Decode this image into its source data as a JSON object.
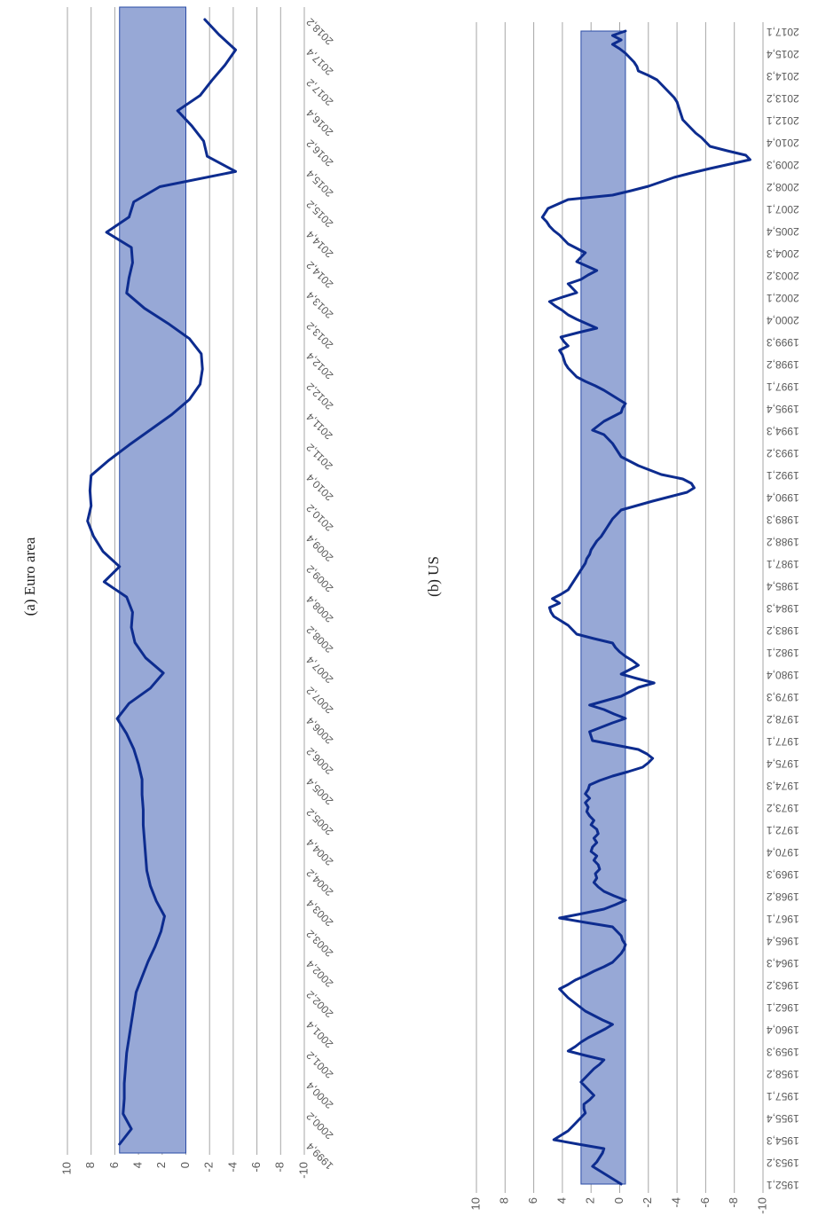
{
  "chart_data": [
    {
      "type": "line",
      "title": "(a) Euro area",
      "color": "#0d2c8f",
      "band": [
        0,
        5.6
      ],
      "band_color": "#97a8d6",
      "grid": true,
      "ylim": [
        -10,
        10
      ],
      "yticks": [
        -10,
        -8,
        -6,
        -4,
        -2,
        0,
        2,
        4,
        6,
        8,
        10
      ],
      "categories": [
        "1999,4",
        null,
        "2000,2",
        null,
        "2000,4",
        null,
        "2001,2",
        null,
        "2001,4",
        null,
        "2002,2",
        null,
        "2002,4",
        null,
        "2003,2",
        null,
        "2003,4",
        null,
        "2004,2",
        null,
        "2004,4",
        null,
        "2005,2",
        null,
        "2005,4",
        null,
        "2006,2",
        null,
        "2006,4",
        null,
        "2007,2",
        null,
        "2007,4",
        null,
        "2008,2",
        null,
        "2008,4",
        null,
        "2009,2",
        null,
        "2009,4",
        null,
        "2010,2",
        null,
        "2010,4",
        null,
        "2011,2",
        null,
        "2011,4",
        null,
        "2012,2",
        null,
        "2012,4",
        null,
        "2013,2",
        null,
        "2013,4",
        null,
        "2014,2",
        null,
        "2014,4",
        null,
        "2015,2",
        null,
        "2015,4",
        null,
        "2016,2",
        null,
        "2016,4",
        null,
        "2017,2",
        null,
        "2017,4",
        null,
        "2018,2"
      ],
      "values": [
        5.6,
        4.6,
        5.3,
        5.2,
        5.2,
        5.1,
        5.0,
        4.8,
        4.6,
        4.4,
        4.2,
        3.7,
        3.2,
        2.6,
        2.1,
        1.8,
        2.5,
        3.0,
        3.3,
        3.4,
        3.5,
        3.6,
        3.6,
        3.7,
        3.7,
        4.0,
        4.4,
        5.0,
        5.8,
        4.8,
        3.0,
        1.9,
        3.4,
        4.3,
        4.6,
        4.5,
        5.0,
        6.9,
        5.6,
        7.0,
        7.8,
        8.3,
        8.0,
        8.1,
        8.0,
        6.5,
        4.8,
        3.0,
        1.2,
        -0.3,
        -1.2,
        -1.4,
        -1.3,
        -0.3,
        1.5,
        3.5,
        5.0,
        4.8,
        4.5,
        4.6,
        6.7,
        4.8,
        4.4,
        2.2,
        -4.2,
        -1.8,
        -1.5,
        -0.5,
        0.7,
        -1.2,
        -2.2,
        -3.3,
        -4.2,
        -2.8,
        -1.6
      ]
    },
    {
      "type": "line",
      "title": "(b) US",
      "color": "#0d2c8f",
      "band": [
        -0.4,
        2.7
      ],
      "band_color": "#97a8d6",
      "grid": true,
      "ylim": [
        -10,
        10
      ],
      "yticks": [
        -10,
        -8,
        -6,
        -4,
        -2,
        0,
        2,
        4,
        6,
        8,
        10
      ],
      "categories": [
        "1952,1",
        null,
        null,
        null,
        null,
        "1953,2",
        null,
        null,
        null,
        null,
        "1954,3",
        null,
        null,
        null,
        null,
        "1955,4",
        null,
        null,
        null,
        null,
        "1957,1",
        null,
        null,
        null,
        null,
        "1958,2",
        null,
        null,
        null,
        null,
        "1959,3",
        null,
        null,
        null,
        null,
        "1960,4",
        null,
        null,
        null,
        null,
        "1962,1",
        null,
        null,
        null,
        null,
        "1963,2",
        null,
        null,
        null,
        null,
        "1964,3",
        null,
        null,
        null,
        null,
        "1965,4",
        null,
        null,
        null,
        null,
        "1967,1",
        null,
        null,
        null,
        null,
        "1968,2",
        null,
        null,
        null,
        null,
        "1969,3",
        null,
        null,
        null,
        null,
        "1970,4",
        null,
        null,
        null,
        null,
        "1972,1",
        null,
        null,
        null,
        null,
        "1973,2",
        null,
        null,
        null,
        null,
        "1974,3",
        null,
        null,
        null,
        null,
        "1975,4",
        null,
        null,
        null,
        null,
        "1977,1",
        null,
        null,
        null,
        null,
        "1978,2",
        null,
        null,
        null,
        null,
        "1979,3",
        null,
        null,
        null,
        null,
        "1980,4",
        null,
        null,
        null,
        null,
        "1982,1",
        null,
        null,
        null,
        null,
        "1983,2",
        null,
        null,
        null,
        null,
        "1984,3",
        null,
        null,
        null,
        null,
        "1985,4",
        null,
        null,
        null,
        null,
        "1987,1",
        null,
        null,
        null,
        null,
        "1988,2",
        null,
        null,
        null,
        null,
        "1989,3",
        null,
        null,
        null,
        null,
        "1990,4",
        null,
        null,
        null,
        null,
        "1992,1",
        null,
        null,
        null,
        null,
        "1993,2",
        null,
        null,
        null,
        null,
        "1994,3",
        null,
        null,
        null,
        null,
        "1995,4",
        null,
        null,
        null,
        null,
        "1997,1",
        null,
        null,
        null,
        null,
        "1998,2",
        null,
        null,
        null,
        null,
        "1999,3",
        null,
        null,
        null,
        null,
        "2000,4",
        null,
        null,
        null,
        null,
        "2002,1",
        null,
        null,
        null,
        null,
        "2003,2",
        null,
        null,
        null,
        null,
        "2004,3",
        null,
        null,
        null,
        null,
        "2005,4",
        null,
        null,
        null,
        null,
        "2007,1",
        null,
        null,
        null,
        null,
        "2008,2",
        null,
        null,
        null,
        null,
        "2009,3",
        null,
        null,
        null,
        null,
        "2010,4",
        null,
        null,
        null,
        null,
        "2012,1",
        null,
        null,
        null,
        null,
        "2013,2",
        null,
        null,
        null,
        null,
        "2014,3",
        null,
        null,
        null,
        null,
        "2015,4",
        null,
        null,
        null,
        null,
        "2017,1"
      ],
      "values": [
        -0.1,
        0.4,
        0.9,
        1.4,
        1.9,
        1.6,
        1.4,
        1.2,
        1.1,
        2.9,
        4.6,
        4.1,
        3.6,
        3.3,
        3.0,
        2.7,
        2.4,
        2.5,
        2.5,
        2.1,
        1.8,
        2.1,
        2.4,
        2.7,
        2.4,
        2.1,
        1.8,
        1.4,
        1.1,
        2.4,
        3.6,
        3.1,
        2.7,
        2.2,
        1.6,
        1.0,
        0.5,
        1.2,
        1.8,
        2.4,
        2.8,
        3.2,
        3.6,
        3.9,
        4.2,
        3.6,
        3.1,
        2.4,
        1.8,
        1.1,
        0.5,
        0.2,
        -0.1,
        -0.3,
        -0.4,
        -0.2,
        -0.1,
        0.2,
        0.5,
        2.4,
        4.2,
        2.6,
        1.1,
        0.3,
        -0.4,
        0.4,
        1.1,
        1.5,
        1.8,
        1.6,
        1.7,
        1.4,
        1.5,
        1.8,
        1.6,
        2.0,
        1.9,
        1.6,
        1.8,
        1.5,
        1.6,
        2.0,
        1.8,
        2.1,
        2.3,
        2.2,
        2.4,
        2.1,
        2.4,
        2.2,
        2.1,
        1.4,
        0.5,
        -0.6,
        -1.6,
        -2.0,
        -2.3,
        -1.9,
        -1.3,
        0.3,
        1.9,
        2.0,
        2.1,
        1.3,
        0.5,
        -0.4,
        0.4,
        1.1,
        2.1,
        1.0,
        -0.1,
        -0.7,
        -1.3,
        -2.4,
        -1.2,
        -0.1,
        -0.7,
        -1.3,
        -0.9,
        -0.4,
        0.0,
        0.3,
        0.5,
        1.8,
        3.0,
        3.3,
        3.6,
        4.1,
        4.6,
        4.8,
        4.9,
        4.2,
        4.7,
        4.1,
        3.6,
        3.4,
        3.2,
        3.0,
        2.8,
        2.6,
        2.4,
        2.3,
        2.1,
        2.0,
        1.8,
        1.6,
        1.3,
        1.1,
        0.9,
        0.7,
        0.5,
        0.2,
        -0.1,
        -1.2,
        -2.3,
        -3.5,
        -4.7,
        -5.2,
        -5.0,
        -4.4,
        -2.9,
        -2.1,
        -1.3,
        -0.7,
        -0.1,
        0.1,
        0.3,
        0.5,
        0.8,
        1.1,
        1.9,
        1.5,
        1.1,
        0.5,
        -0.1,
        -0.2,
        -0.4,
        0.1,
        0.6,
        1.1,
        1.7,
        2.4,
        3.0,
        3.3,
        3.6,
        3.8,
        3.9,
        4.0,
        4.2,
        3.6,
        3.9,
        4.1,
        2.9,
        1.6,
        2.3,
        3.0,
        3.6,
        4.0,
        4.5,
        4.9,
        4.0,
        3.0,
        3.3,
        3.6,
        2.7,
        2.2,
        1.6,
        2.3,
        3.0,
        2.7,
        2.4,
        3.0,
        3.6,
        3.9,
        4.2,
        4.6,
        4.9,
        5.1,
        5.4,
        5.2,
        5.0,
        4.3,
        3.6,
        0.5,
        -0.8,
        -2.0,
        -2.9,
        -3.8,
        -5.0,
        -6.3,
        -7.7,
        -9.1,
        -8.8,
        -7.5,
        -6.3,
        -6.0,
        -5.7,
        -5.3,
        -5.0,
        -4.7,
        -4.4,
        -4.3,
        -4.2,
        -4.1,
        -4.0,
        -3.8,
        -3.5,
        -3.2,
        -2.9,
        -2.6,
        -2.0,
        -1.3,
        -1.2,
        -1.0,
        -0.7,
        -0.4,
        0.0,
        0.5,
        -0.1,
        0.5,
        -0.4
      ]
    }
  ]
}
